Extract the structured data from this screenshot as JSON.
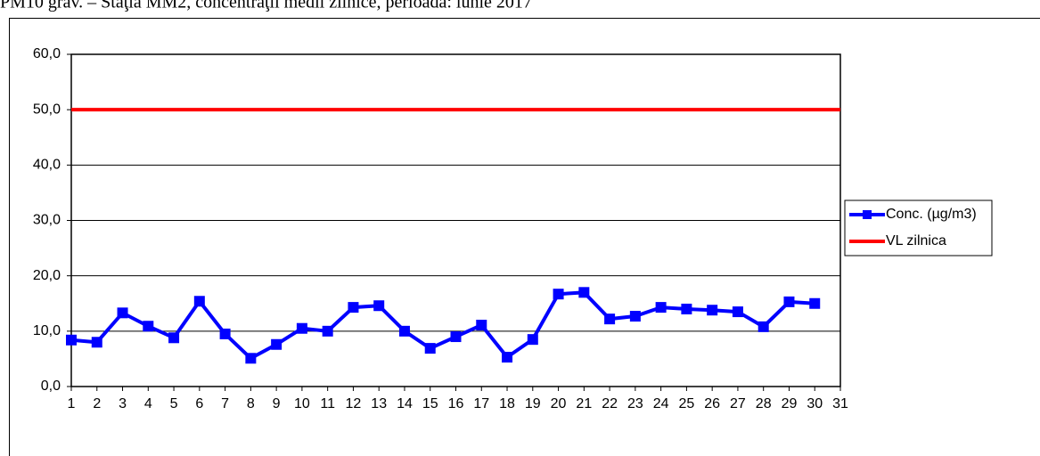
{
  "chart_data": {
    "type": "line",
    "title": "PM10 grav. – Staţia MM2, concentraţii medii zilnice, perioada: iunie 2017",
    "categories": [
      "1",
      "2",
      "3",
      "4",
      "5",
      "6",
      "7",
      "8",
      "9",
      "10",
      "11",
      "12",
      "13",
      "14",
      "15",
      "16",
      "17",
      "18",
      "19",
      "20",
      "21",
      "22",
      "23",
      "24",
      "25",
      "26",
      "27",
      "28",
      "29",
      "30",
      "31"
    ],
    "series": [
      {
        "name": "Conc. (µg/m3)",
        "color": "#0000ff",
        "marker": "square",
        "values": [
          8.4,
          8.0,
          13.3,
          10.9,
          8.8,
          15.4,
          9.5,
          5.1,
          7.6,
          10.5,
          10.0,
          14.3,
          14.6,
          10.0,
          6.9,
          9.0,
          11.1,
          5.3,
          8.5,
          16.7,
          17.0,
          12.2,
          12.7,
          14.3,
          14.0,
          13.8,
          13.5,
          10.8,
          15.3,
          15.0,
          null
        ]
      },
      {
        "name": "VL zilnica",
        "color": "#ff0000",
        "values": [
          50,
          50,
          50,
          50,
          50,
          50,
          50,
          50,
          50,
          50,
          50,
          50,
          50,
          50,
          50,
          50,
          50,
          50,
          50,
          50,
          50,
          50,
          50,
          50,
          50,
          50,
          50,
          50,
          50,
          50,
          50
        ]
      }
    ],
    "ylim": [
      0,
      60
    ],
    "yticks": [
      {
        "value": 0,
        "label": "0,0"
      },
      {
        "value": 10,
        "label": "10,0"
      },
      {
        "value": 20,
        "label": "20,0"
      },
      {
        "value": 30,
        "label": "30,0"
      },
      {
        "value": 40,
        "label": "40,0"
      },
      {
        "value": 50,
        "label": "50,0"
      },
      {
        "value": 60,
        "label": "60,0"
      }
    ],
    "grid": true,
    "legend": "right"
  }
}
